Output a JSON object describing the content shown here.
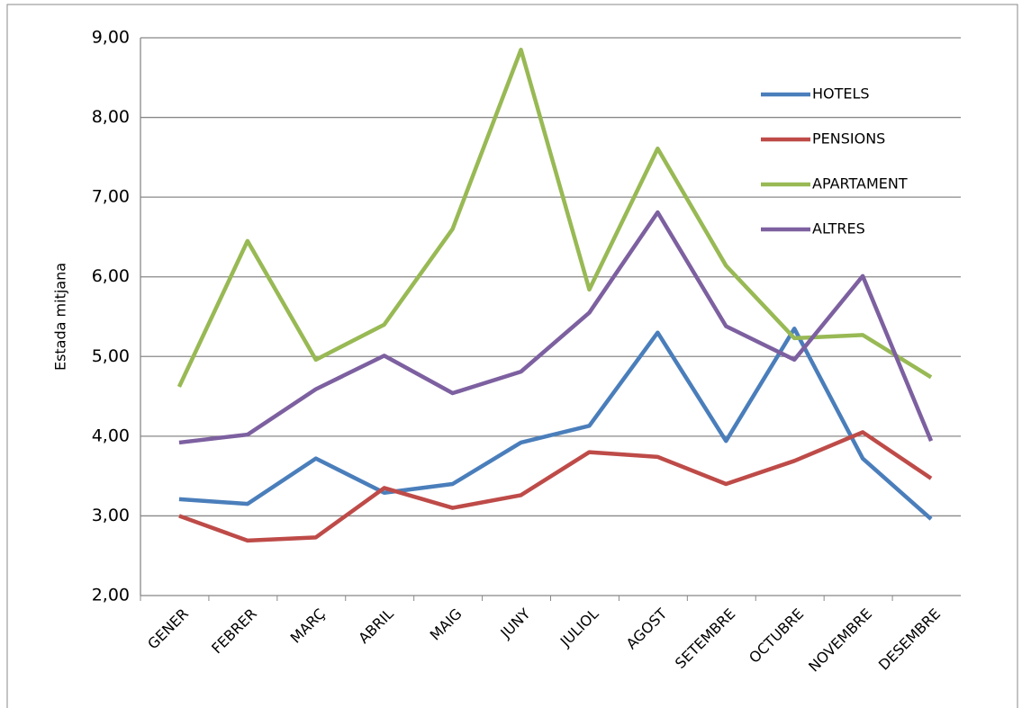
{
  "chart_data": {
    "type": "line",
    "y_label": "Estada mitjana",
    "categories": [
      "GENER",
      "FEBRER",
      "MARÇ",
      "ABRIL",
      "MAIG",
      "JUNY",
      "JULIOL",
      "AGOST",
      "SETEMBRE",
      "OCTUBRE",
      "NOVEMBRE",
      "DESEMBRE"
    ],
    "series": [
      {
        "name": "HOTELS",
        "color": "#4a7ebb",
        "values": [
          3.21,
          3.15,
          3.72,
          3.29,
          3.4,
          3.92,
          4.13,
          5.3,
          3.94,
          5.35,
          3.72,
          2.96
        ]
      },
      {
        "name": "PENSIONS",
        "color": "#be4b48",
        "values": [
          3.0,
          2.69,
          2.73,
          3.35,
          3.1,
          3.26,
          3.8,
          3.74,
          3.4,
          3.69,
          4.05,
          3.47
        ]
      },
      {
        "name": "APARTAMENT",
        "color": "#98b954",
        "values": [
          4.62,
          6.45,
          4.96,
          5.4,
          6.6,
          8.85,
          5.84,
          7.61,
          6.14,
          5.23,
          5.27,
          4.74
        ]
      },
      {
        "name": "ALTRES",
        "color": "#7d60a0",
        "values": [
          3.92,
          4.02,
          4.59,
          5.01,
          4.54,
          4.81,
          5.55,
          6.81,
          5.38,
          4.96,
          6.01,
          3.94
        ]
      }
    ],
    "ylim": [
      2,
      9
    ],
    "yticks": [
      {
        "value": 2,
        "label": "2,00"
      },
      {
        "value": 3,
        "label": "3,00"
      },
      {
        "value": 4,
        "label": "4,00"
      },
      {
        "value": 5,
        "label": "5,00"
      },
      {
        "value": 6,
        "label": "6,00"
      },
      {
        "value": 7,
        "label": "7,00"
      },
      {
        "value": 8,
        "label": "8,00"
      },
      {
        "value": 9,
        "label": "9,00"
      }
    ],
    "grid": true,
    "legend": "top-right"
  }
}
